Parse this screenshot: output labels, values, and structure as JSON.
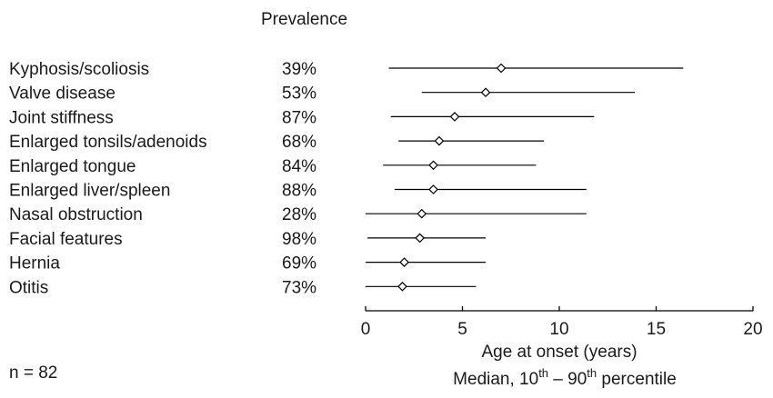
{
  "chart_data": {
    "type": "range-plot",
    "prevalence_header": "Prevalence",
    "categories": [
      "Kyphosis/scoliosis",
      "Valve disease",
      "Joint stiffness",
      "Enlarged tonsils/adenoids",
      "Enlarged tongue",
      "Enlarged liver/spleen",
      "Nasal obstruction",
      "Facial features",
      "Hernia",
      "Otitis"
    ],
    "prevalence": [
      "39%",
      "53%",
      "87%",
      "68%",
      "84%",
      "88%",
      "28%",
      "98%",
      "69%",
      "73%"
    ],
    "median": [
      7.0,
      6.2,
      4.6,
      3.8,
      3.5,
      3.5,
      2.9,
      2.8,
      2.0,
      1.9
    ],
    "p10": [
      1.2,
      2.9,
      1.3,
      1.7,
      0.9,
      1.5,
      0.0,
      0.1,
      0.0,
      0.0
    ],
    "p90": [
      16.4,
      13.9,
      11.8,
      9.2,
      8.8,
      11.4,
      11.4,
      6.2,
      6.2,
      5.7
    ],
    "xlim": [
      0,
      20
    ],
    "xticks": [
      0,
      5,
      10,
      15,
      20
    ],
    "xlabel": "Age at onset (years)",
    "xlabel_line2_parts": [
      "Median, 10",
      "th",
      " – 90",
      "th",
      " percentile"
    ],
    "footnote": "n = 82"
  }
}
